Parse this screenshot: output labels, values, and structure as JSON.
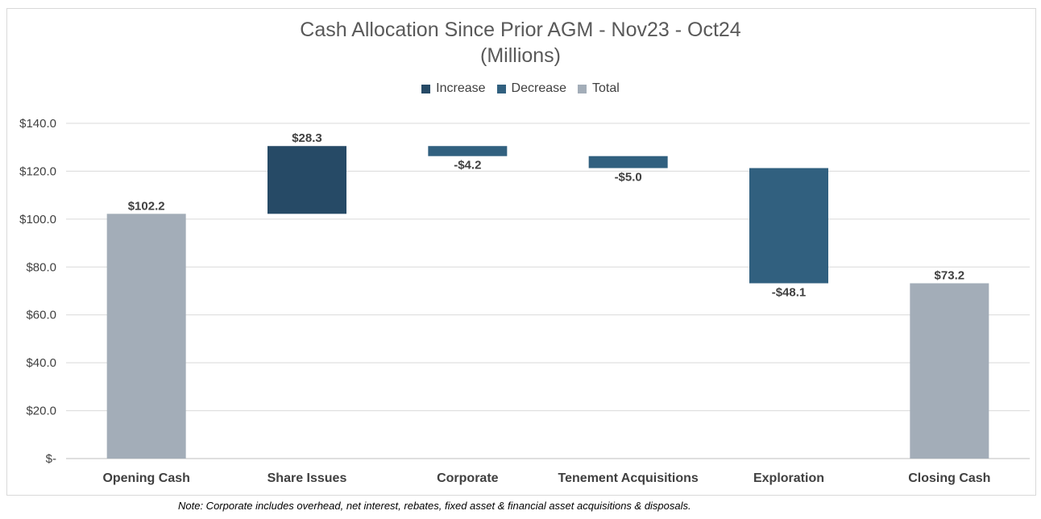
{
  "chart_data": {
    "type": "bar",
    "subtype": "waterfall",
    "title": "Cash Allocation Since Prior AGM -  Nov23 - Oct24",
    "subtitle": "(Millions)",
    "legend": {
      "placement": "top-center",
      "entries": [
        {
          "name": "Increase",
          "color": "#264a66"
        },
        {
          "name": "Decrease",
          "color": "#31607f"
        },
        {
          "name": "Total",
          "color": "#a3adb8"
        }
      ]
    },
    "categories": [
      "Opening Cash",
      "Share Issues",
      "Corporate",
      "Tenement Acquisitions",
      "Exploration",
      "Closing Cash"
    ],
    "values": [
      102.2,
      28.3,
      -4.2,
      -5.0,
      -48.1,
      73.2
    ],
    "kinds": [
      "total",
      "increase",
      "decrease",
      "decrease",
      "decrease",
      "total"
    ],
    "data_labels": [
      "$102.2",
      "$28.3",
      "-$4.2",
      "-$5.0",
      "-$48.1",
      "$73.2"
    ],
    "ylim": [
      0,
      140
    ],
    "yticks": [
      0,
      20,
      40,
      60,
      80,
      100,
      120,
      140
    ],
    "ytick_labels": [
      "$-",
      "$20.0",
      "$40.0",
      "$60.0",
      "$80.0",
      "$100.0",
      "$120.0",
      "$140.0"
    ],
    "grid": true,
    "xlabel": "",
    "ylabel": ""
  },
  "note": "Note: Corporate includes overhead, net interest, rebates, fixed asset & financial asset acquisitions & disposals."
}
